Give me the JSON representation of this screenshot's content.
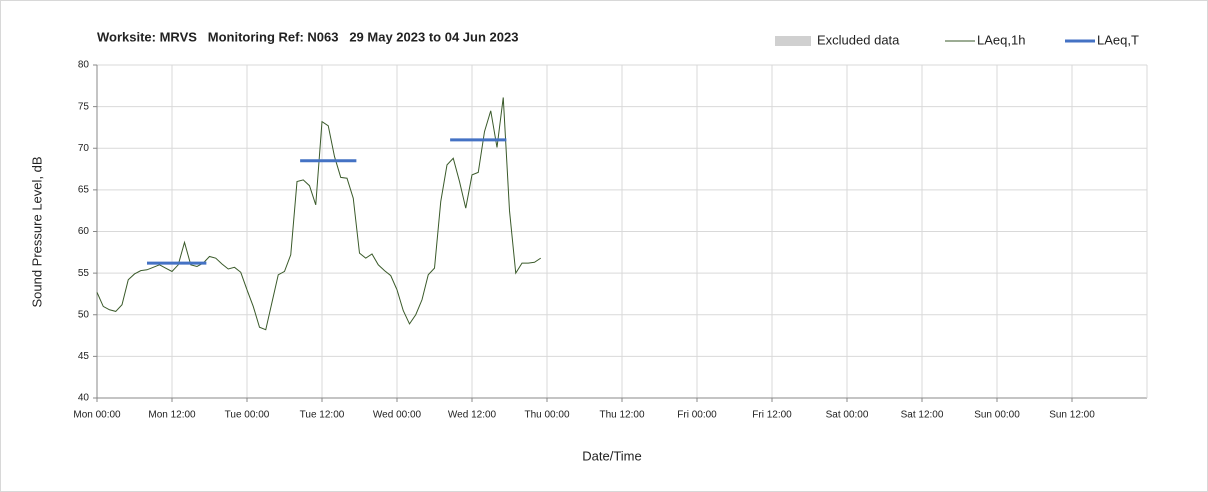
{
  "chart_data": {
    "type": "line",
    "title": "Worksite: MRVS   Monitoring Ref: N063   29 May 2023 to 04 Jun 2023",
    "x_label": "Date/Time",
    "y_label": "Sound Pressure Level, dB",
    "xlim": [
      0,
      168
    ],
    "xticks": [
      {
        "value": 0,
        "label": "Mon 00:00"
      },
      {
        "value": 12,
        "label": "Mon 12:00"
      },
      {
        "value": 24,
        "label": "Tue 00:00"
      },
      {
        "value": 36,
        "label": "Tue 12:00"
      },
      {
        "value": 48,
        "label": "Wed 00:00"
      },
      {
        "value": 60,
        "label": "Wed 12:00"
      },
      {
        "value": 72,
        "label": "Thu 00:00"
      },
      {
        "value": 84,
        "label": "Thu 12:00"
      },
      {
        "value": 96,
        "label": "Fri 00:00"
      },
      {
        "value": 108,
        "label": "Fri 12:00"
      },
      {
        "value": 120,
        "label": "Sat 00:00"
      },
      {
        "value": 132,
        "label": "Sat 12:00"
      },
      {
        "value": 144,
        "label": "Sun 00:00"
      },
      {
        "value": 156,
        "label": "Sun 12:00"
      }
    ],
    "ylim": [
      40,
      80
    ],
    "yticks": [
      40,
      45,
      50,
      55,
      60,
      65,
      70,
      75,
      80
    ],
    "grid": true,
    "legend": "top-right",
    "series": [
      {
        "name": "Excluded data",
        "color": "#d0d0d0",
        "kind": "area",
        "x": [],
        "values": []
      },
      {
        "name": "LAeq,1h",
        "color": "#3a5a2a",
        "kind": "line",
        "x": [
          0,
          1,
          2,
          3,
          4,
          5,
          6,
          7,
          8,
          9,
          10,
          11,
          12,
          13,
          14,
          15,
          16,
          17,
          18,
          19,
          20,
          21,
          22,
          23,
          24,
          25,
          26,
          27,
          28,
          29,
          30,
          31,
          32,
          33,
          34,
          35,
          36,
          37,
          38,
          39,
          40,
          41,
          42,
          43,
          44,
          45,
          46,
          47,
          48,
          49,
          50,
          51,
          52,
          53,
          54,
          55,
          56,
          57,
          58,
          59,
          60,
          61,
          62,
          63,
          64,
          65,
          66,
          67,
          68,
          69,
          70,
          71
        ],
        "values": [
          52.7,
          51.0,
          50.6,
          50.4,
          51.2,
          54.2,
          54.9,
          55.3,
          55.4,
          55.7,
          56.0,
          55.6,
          55.2,
          56.0,
          58.7,
          56.0,
          55.8,
          56.2,
          57.0,
          56.8,
          56.1,
          55.5,
          55.7,
          55.1,
          53.0,
          51.0,
          48.5,
          48.2,
          51.5,
          54.8,
          55.2,
          57.2,
          66.0,
          66.2,
          65.5,
          63.2,
          73.2,
          72.7,
          69.0,
          66.5,
          66.4,
          64.0,
          57.4,
          56.8,
          57.3,
          56.0,
          55.3,
          54.7,
          53.0,
          50.5,
          48.9,
          50.0,
          51.8,
          54.8,
          55.6,
          63.6,
          68.0,
          68.8,
          66.0,
          62.8,
          66.8,
          67.1,
          72.0,
          74.5,
          70.1,
          76.1,
          62.5,
          55.0,
          56.2,
          56.2,
          56.3,
          56.8
        ]
      },
      {
        "name": "LAeq,T",
        "color": "#4472c4",
        "kind": "line",
        "x": [
          8,
          17.5,
          null,
          32.5,
          41.5,
          null,
          56.5,
          65.5
        ],
        "values": [
          56.2,
          56.2,
          null,
          68.5,
          68.5,
          null,
          71.0,
          71.0
        ]
      }
    ]
  }
}
